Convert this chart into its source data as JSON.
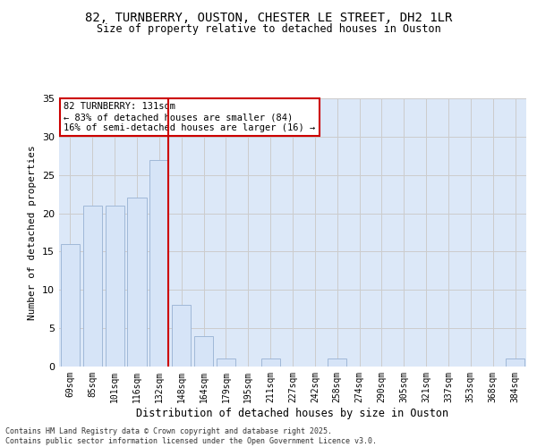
{
  "title1": "82, TURNBERRY, OUSTON, CHESTER LE STREET, DH2 1LR",
  "title2": "Size of property relative to detached houses in Ouston",
  "xlabel": "Distribution of detached houses by size in Ouston",
  "ylabel": "Number of detached properties",
  "categories": [
    "69sqm",
    "85sqm",
    "101sqm",
    "116sqm",
    "132sqm",
    "148sqm",
    "164sqm",
    "179sqm",
    "195sqm",
    "211sqm",
    "227sqm",
    "242sqm",
    "258sqm",
    "274sqm",
    "290sqm",
    "305sqm",
    "321sqm",
    "337sqm",
    "353sqm",
    "368sqm",
    "384sqm"
  ],
  "values": [
    16,
    21,
    21,
    22,
    27,
    8,
    4,
    1,
    0,
    1,
    0,
    0,
    1,
    0,
    0,
    0,
    0,
    0,
    0,
    0,
    1
  ],
  "bar_color": "#d6e4f7",
  "bar_edge_color": "#a0b8d8",
  "vline_bin_index": 4,
  "vline_color": "#cc0000",
  "annotation_text": "82 TURNBERRY: 131sqm\n← 83% of detached houses are smaller (84)\n16% of semi-detached houses are larger (16) →",
  "annotation_box_color": "#ffffff",
  "annotation_box_edge": "#cc0000",
  "ylim": [
    0,
    35
  ],
  "yticks": [
    0,
    5,
    10,
    15,
    20,
    25,
    30,
    35
  ],
  "grid_color": "#cccccc",
  "bg_color": "#dce8f8",
  "footer1": "Contains HM Land Registry data © Crown copyright and database right 2025.",
  "footer2": "Contains public sector information licensed under the Open Government Licence v3.0."
}
